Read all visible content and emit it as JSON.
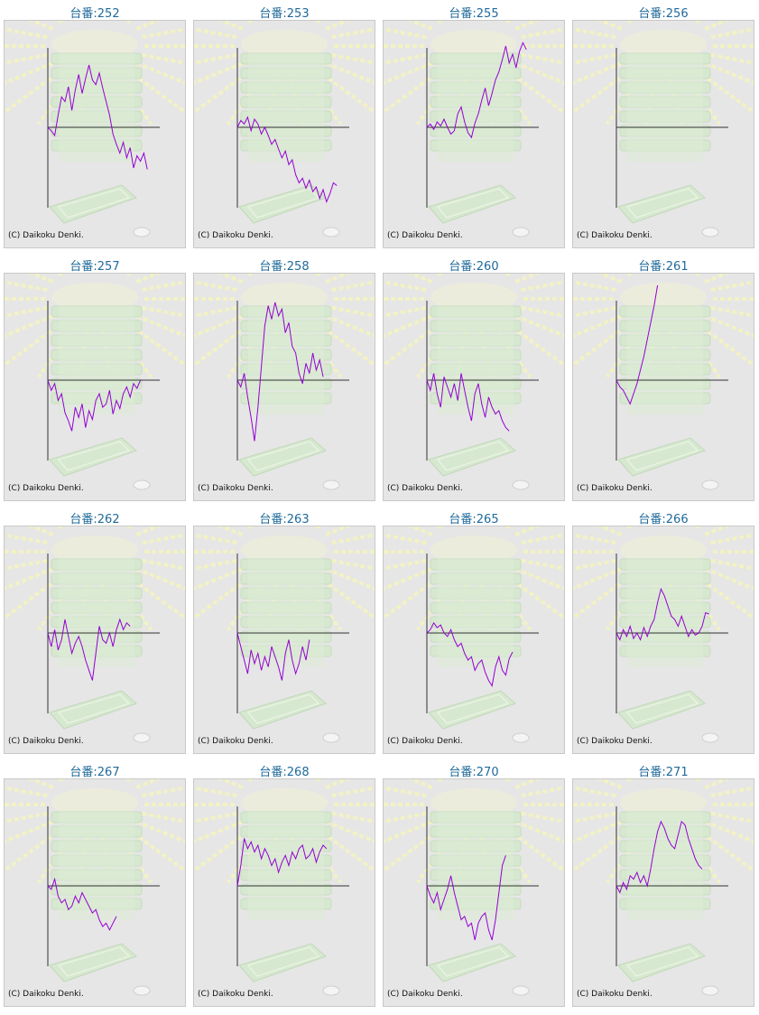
{
  "copyright": "(C) Daikoku Denki.",
  "accent_color": "#9400d3",
  "title_color": "#1f6a9a",
  "chart_data": [
    {
      "type": "line",
      "title": "台番:252",
      "y": [
        0,
        -5,
        -12,
        18,
        45,
        38,
        60,
        25,
        55,
        78,
        50,
        72,
        92,
        70,
        63,
        80,
        58,
        38,
        18,
        -10,
        -25,
        -38,
        -22,
        -45,
        -30,
        -60,
        -42,
        -50,
        -38,
        -62
      ]
    },
    {
      "type": "line",
      "title": "台番:253",
      "y": [
        0,
        10,
        5,
        15,
        -5,
        12,
        5,
        -10,
        0,
        -12,
        -25,
        -18,
        -32,
        -45,
        -35,
        -55,
        -48,
        -70,
        -82,
        -75,
        -90,
        -78,
        -95,
        -88,
        -105,
        -92,
        -110,
        -98,
        -82,
        -86
      ]
    },
    {
      "type": "line",
      "title": "台番:255",
      "y": [
        0,
        5,
        -3,
        8,
        2,
        12,
        0,
        -10,
        -5,
        20,
        30,
        8,
        -8,
        -15,
        6,
        20,
        40,
        58,
        32,
        50,
        70,
        82,
        100,
        120,
        95,
        108,
        88,
        112,
        125,
        115
      ]
    },
    {
      "type": "line",
      "title": "台番:256",
      "y": []
    },
    {
      "type": "line",
      "title": "台番:257",
      "y": [
        0,
        -15,
        -5,
        -30,
        -20,
        -48,
        -60,
        -75,
        -40,
        -55,
        -35,
        -70,
        -45,
        -58,
        -30,
        -20,
        -40,
        -35,
        -15,
        -50,
        -30,
        -42,
        -20,
        -10,
        -25,
        -5,
        -12,
        0
      ]
    },
    {
      "type": "line",
      "title": "台番:258",
      "y": [
        0,
        -10,
        10,
        -25,
        -55,
        -90,
        -40,
        20,
        80,
        110,
        90,
        115,
        95,
        105,
        70,
        85,
        50,
        40,
        10,
        -5,
        25,
        10,
        40,
        15,
        30,
        5
      ]
    },
    {
      "type": "line",
      "title": "台番:260",
      "y": [
        0,
        -15,
        10,
        -20,
        -40,
        5,
        -10,
        -25,
        -5,
        -30,
        10,
        -15,
        -40,
        -60,
        -20,
        -5,
        -35,
        -55,
        -25,
        -40,
        -50,
        -45,
        -60,
        -70,
        -75
      ]
    },
    {
      "type": "line",
      "title": "台番:261",
      "y": [
        0,
        -10,
        -15,
        -25,
        -35,
        -20,
        -5,
        15,
        35,
        60,
        85,
        110,
        140
      ]
    },
    {
      "type": "line",
      "title": "台番:262",
      "y": [
        0,
        -20,
        5,
        -25,
        -10,
        20,
        -5,
        -30,
        -15,
        -5,
        -20,
        -40,
        -55,
        -70,
        -30,
        10,
        -10,
        -15,
        0,
        -20,
        5,
        20,
        5,
        15,
        10
      ]
    },
    {
      "type": "line",
      "title": "台番:263",
      "y": [
        0,
        -20,
        -40,
        -60,
        -25,
        -45,
        -30,
        -55,
        -35,
        -50,
        -20,
        -35,
        -50,
        -70,
        -30,
        -10,
        -40,
        -60,
        -45,
        -20,
        -40,
        -10
      ]
    },
    {
      "type": "line",
      "title": "台番:265",
      "y": [
        0,
        5,
        15,
        8,
        12,
        0,
        -5,
        5,
        -10,
        -20,
        -15,
        -30,
        -40,
        -35,
        -55,
        -45,
        -40,
        -58,
        -70,
        -78,
        -50,
        -35,
        -55,
        -62,
        -38,
        -28
      ]
    },
    {
      "type": "line",
      "title": "台番:266",
      "y": [
        0,
        -10,
        5,
        -5,
        10,
        -8,
        0,
        -10,
        8,
        -5,
        10,
        20,
        45,
        65,
        55,
        40,
        25,
        20,
        10,
        25,
        10,
        -5,
        5,
        -3,
        0,
        10,
        30,
        28
      ]
    },
    {
      "type": "line",
      "title": "台番:267",
      "y": [
        0,
        -5,
        10,
        -15,
        -25,
        -20,
        -35,
        -30,
        -15,
        -25,
        -10,
        -20,
        -30,
        -40,
        -35,
        -50,
        -60,
        -55,
        -65,
        -55,
        -45
      ]
    },
    {
      "type": "line",
      "title": "台番:268",
      "y": [
        0,
        30,
        70,
        55,
        65,
        50,
        60,
        40,
        55,
        45,
        30,
        40,
        20,
        35,
        45,
        30,
        50,
        40,
        55,
        60,
        40,
        45,
        55,
        35,
        50,
        60,
        55
      ]
    },
    {
      "type": "line",
      "title": "台番:270",
      "y": [
        0,
        -15,
        -25,
        -10,
        -35,
        -20,
        -5,
        15,
        -10,
        -30,
        -50,
        -45,
        -60,
        -55,
        -80,
        -55,
        -45,
        -40,
        -65,
        -80,
        -50,
        -10,
        30,
        45
      ]
    },
    {
      "type": "line",
      "title": "台番:271",
      "y": [
        0,
        -10,
        5,
        -5,
        15,
        10,
        20,
        5,
        15,
        0,
        25,
        55,
        80,
        95,
        85,
        70,
        60,
        55,
        75,
        95,
        90,
        70,
        55,
        40,
        30,
        25
      ]
    }
  ]
}
